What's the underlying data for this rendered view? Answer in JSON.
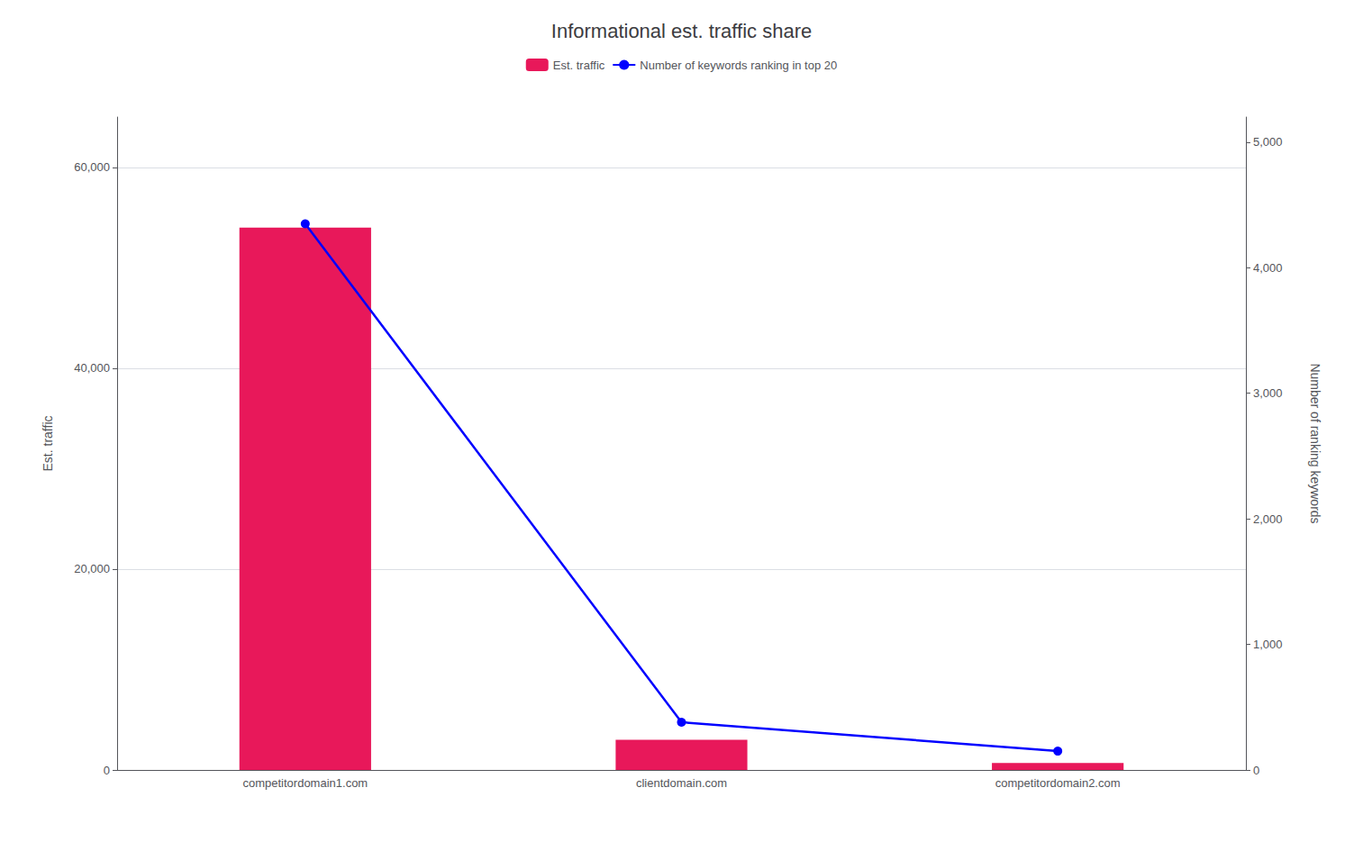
{
  "chart_data": {
    "type": "bar",
    "title": "Informational est. traffic share",
    "categories": [
      "competitordomain1.com",
      "clientdomain.com",
      "competitordomain2.com"
    ],
    "series": [
      {
        "name": "Est. traffic",
        "type": "bar",
        "color": "#e8185a",
        "values": [
          54000,
          3000,
          700
        ]
      },
      {
        "name": "Number of keywords ranking in top 20",
        "type": "line",
        "color": "#0000ff",
        "marker": "circle",
        "axis": "y2",
        "values": [
          4350,
          380,
          150
        ]
      }
    ],
    "ylabel": "Est. traffic",
    "y2label": "Number of ranking keywords",
    "ylim": [
      0,
      65000
    ],
    "yticks": [
      0,
      {
        "value": 20000,
        "label": "20,000"
      },
      {
        "value": 40000,
        "label": "40,000"
      },
      {
        "value": 60000,
        "label": "60,000"
      }
    ],
    "y2lim": [
      0,
      5200
    ],
    "y2ticks": [
      0,
      {
        "value": 1000,
        "label": "1,000"
      },
      {
        "value": 2000,
        "label": "2,000"
      },
      {
        "value": 3000,
        "label": "3,000"
      },
      {
        "value": 4000,
        "label": "4,000"
      },
      {
        "value": 5000,
        "label": "5,000"
      }
    ],
    "grid": true,
    "legend": "top"
  }
}
